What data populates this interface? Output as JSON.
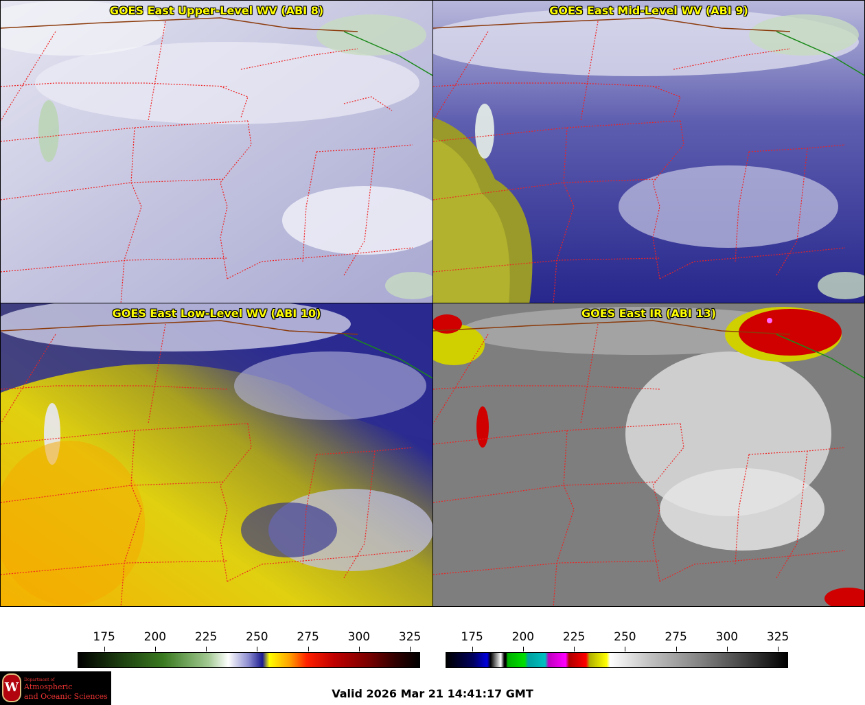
{
  "panels": [
    {
      "key": "p1",
      "title": "GOES East Upper-Level WV (ABI 8)"
    },
    {
      "key": "p2",
      "title": "GOES East Mid-Level WV (ABI 9)"
    },
    {
      "key": "p3",
      "title": "GOES East Low-Level WV (ABI 10)"
    },
    {
      "key": "p4",
      "title": "GOES East IR (ABI 13)"
    }
  ],
  "colorbars": {
    "wv": {
      "ticks": [
        "175",
        "200",
        "225",
        "250",
        "275",
        "300",
        "325"
      ],
      "range": [
        162,
        330
      ]
    },
    "ir": {
      "ticks": [
        "175",
        "200",
        "225",
        "250",
        "275",
        "300",
        "325"
      ],
      "range": [
        162,
        330
      ]
    }
  },
  "valid_text": "Valid 2026 Mar 21 14:41:17 GMT",
  "logo": {
    "dept": "Department of",
    "line1": "Atmospheric",
    "line2": "and Oceanic Sciences",
    "seal": "W"
  },
  "colors": {
    "state_borders": "#ee2222",
    "intl_border": "#8b3a0a",
    "lake_border": "#1a8a1a",
    "title": "#ffff00"
  }
}
